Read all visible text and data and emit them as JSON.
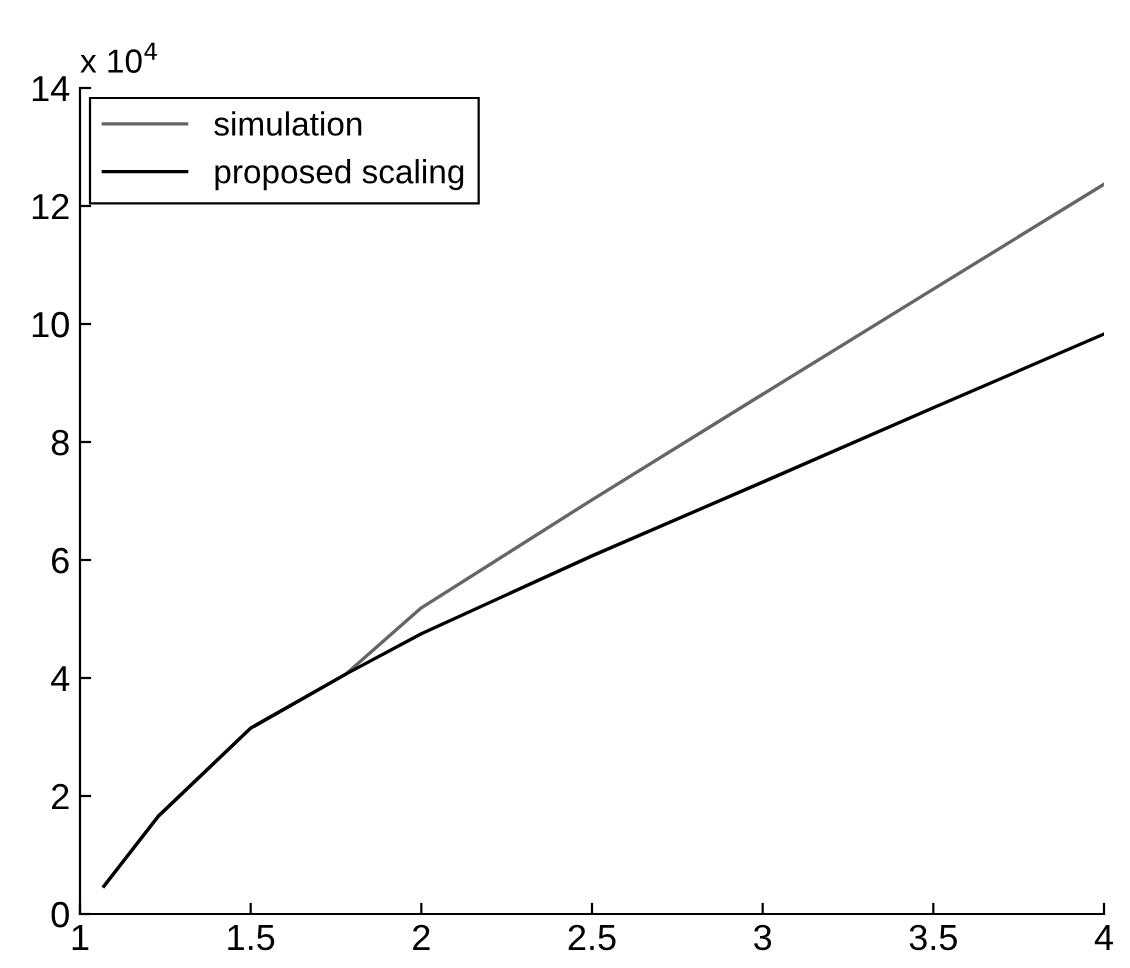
{
  "chart_data": {
    "type": "line",
    "annotations": [
      "x 10$^{4}$"
    ],
    "series": [
      {
        "name": "simulation",
        "color": "#666666",
        "x": [
          1.07,
          1.23,
          1.5,
          1.78,
          2.0,
          2.5,
          3,
          3.5,
          4
        ],
        "values": [
          0.47,
          1.66,
          3.15,
          4.07,
          5.19,
          7.02,
          8.81,
          10.59,
          12.37
        ]
      },
      {
        "name": "proposed scaling",
        "color": "#000000",
        "x": [
          1.07,
          1.23,
          1.5,
          1.78,
          2.0,
          2.5,
          3,
          3.5,
          4
        ],
        "values": [
          0.47,
          1.66,
          3.15,
          4.07,
          4.75,
          6.07,
          7.32,
          8.58,
          9.83
        ]
      }
    ],
    "xlim": [
      1,
      4
    ],
    "xticks": [
      1,
      1.5,
      2,
      2.5,
      3,
      3.5,
      4
    ],
    "ylim": [
      0,
      14
    ],
    "yticks": [
      0,
      2,
      4,
      6,
      8,
      10,
      12,
      14
    ],
    "grid": false,
    "legend": "top left",
    "line_style": "solid"
  }
}
